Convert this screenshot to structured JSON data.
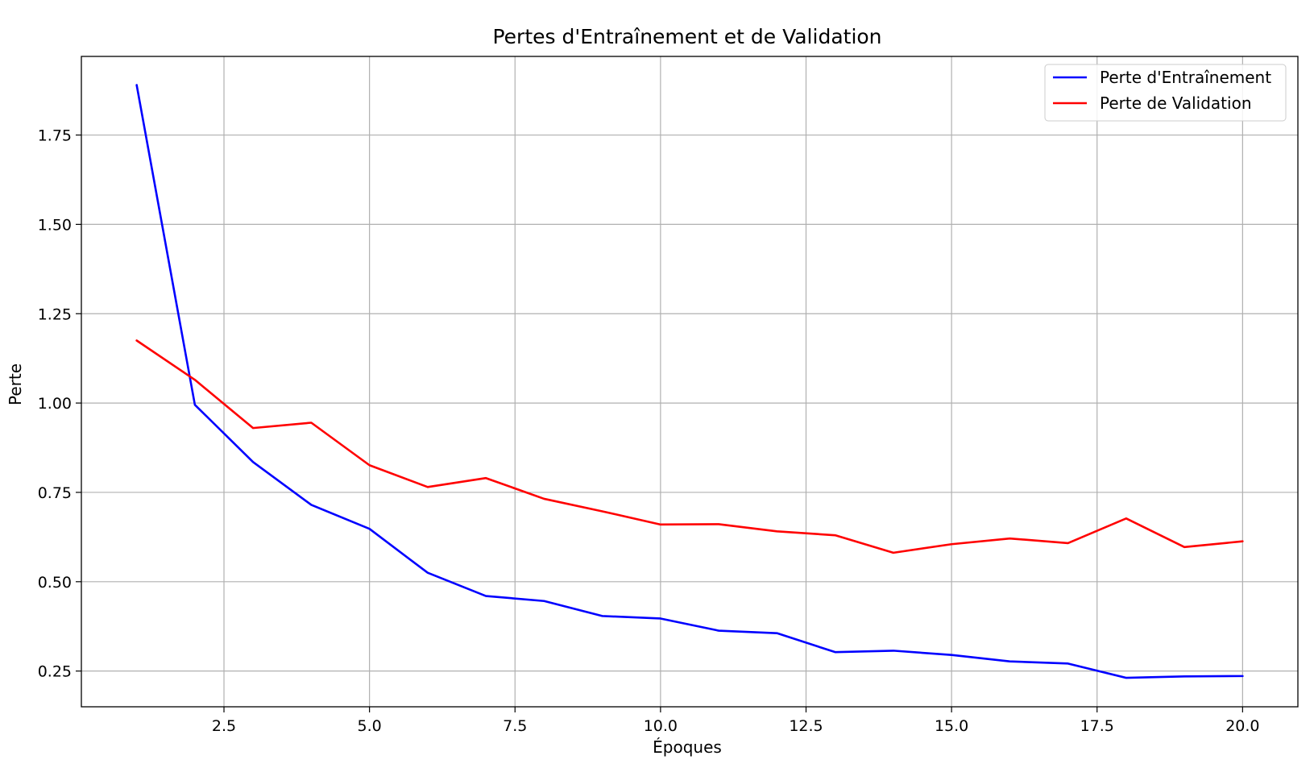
{
  "chart_data": {
    "type": "line",
    "title": "Pertes d'Entraînement et de Validation",
    "xlabel": "Époques",
    "ylabel": "Perte",
    "xlim": [
      0.05,
      20.95
    ],
    "ylim": [
      0.15,
      1.97
    ],
    "xticks": [
      2.5,
      5.0,
      7.5,
      10.0,
      12.5,
      15.0,
      17.5,
      20.0
    ],
    "xtick_labels": [
      "2.5",
      "5.0",
      "7.5",
      "10.0",
      "12.5",
      "15.0",
      "17.5",
      "20.0"
    ],
    "yticks": [
      0.25,
      0.5,
      0.75,
      1.0,
      1.25,
      1.5,
      1.75
    ],
    "ytick_labels": [
      "0.25",
      "0.50",
      "0.75",
      "1.00",
      "1.25",
      "1.50",
      "1.75"
    ],
    "grid": true,
    "legend_position": "top-right",
    "x": [
      1,
      2,
      3,
      4,
      5,
      6,
      7,
      8,
      9,
      10,
      11,
      12,
      13,
      14,
      15,
      16,
      17,
      18,
      19,
      20
    ],
    "series": [
      {
        "name": "Perte d'Entraînement",
        "color": "#0000ff",
        "values": [
          1.89,
          0.995,
          0.835,
          0.715,
          0.648,
          0.525,
          0.46,
          0.446,
          0.404,
          0.397,
          0.363,
          0.356,
          0.303,
          0.307,
          0.295,
          0.277,
          0.271,
          0.231,
          0.235,
          0.236
        ]
      },
      {
        "name": "Perte de Validation",
        "color": "#ff0000",
        "values": [
          1.175,
          1.065,
          0.93,
          0.945,
          0.826,
          0.765,
          0.79,
          0.732,
          0.697,
          0.66,
          0.661,
          0.641,
          0.63,
          0.581,
          0.605,
          0.621,
          0.608,
          0.677,
          0.597,
          0.613
        ]
      }
    ]
  }
}
